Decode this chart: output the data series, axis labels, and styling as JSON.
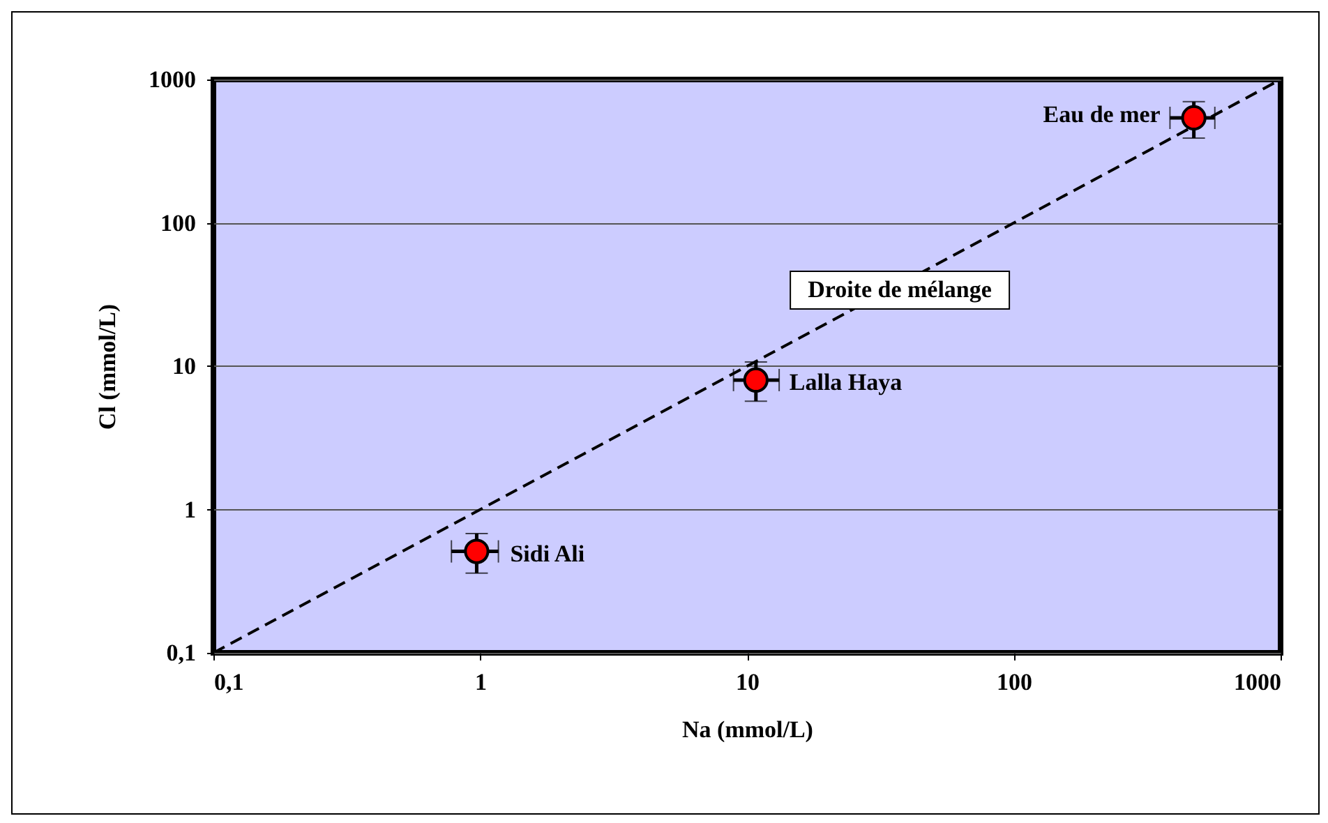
{
  "chart_data": {
    "type": "scatter",
    "xlabel": "Na (mmol/L)",
    "ylabel": "Cl (mmol/L)",
    "log": "xy",
    "grid": "y",
    "xlim": [
      0.1,
      1000
    ],
    "ylim": [
      0.1,
      1000
    ],
    "xticks": [
      {
        "value": 0.1,
        "label": "0,1"
      },
      1,
      10,
      100,
      1000
    ],
    "yticks": [
      {
        "value": 0.1,
        "label": "0,1"
      },
      1,
      10,
      100,
      1000
    ],
    "series": [
      {
        "type": "line",
        "color": "#000000",
        "line_style": "dashed",
        "x": [
          0.1,
          1000
        ],
        "values": [
          0.1,
          1000
        ]
      },
      {
        "marker": "circle",
        "color": "#ff0000",
        "x": [
          0.97,
          10.8,
          473
        ],
        "values": [
          0.51,
          8.0,
          540
        ],
        "errors": [
          [
            0.36,
            0.68
          ],
          [
            5.7,
            10.7
          ],
          [
            390,
            700
          ]
        ],
        "xerrors": [
          [
            0.78,
            1.17
          ],
          [
            8.9,
            13.2
          ],
          [
            385,
            567
          ]
        ]
      }
    ],
    "annotations": [
      {
        "text": "Sidi Ali",
        "x": 0.97,
        "y": 0.51
      },
      {
        "text": "Lalla Haya",
        "x": 10.8,
        "y": 8.0
      },
      {
        "text": "Eau de mer",
        "x": 473,
        "y": 540
      },
      "Droite de mélange"
    ]
  }
}
